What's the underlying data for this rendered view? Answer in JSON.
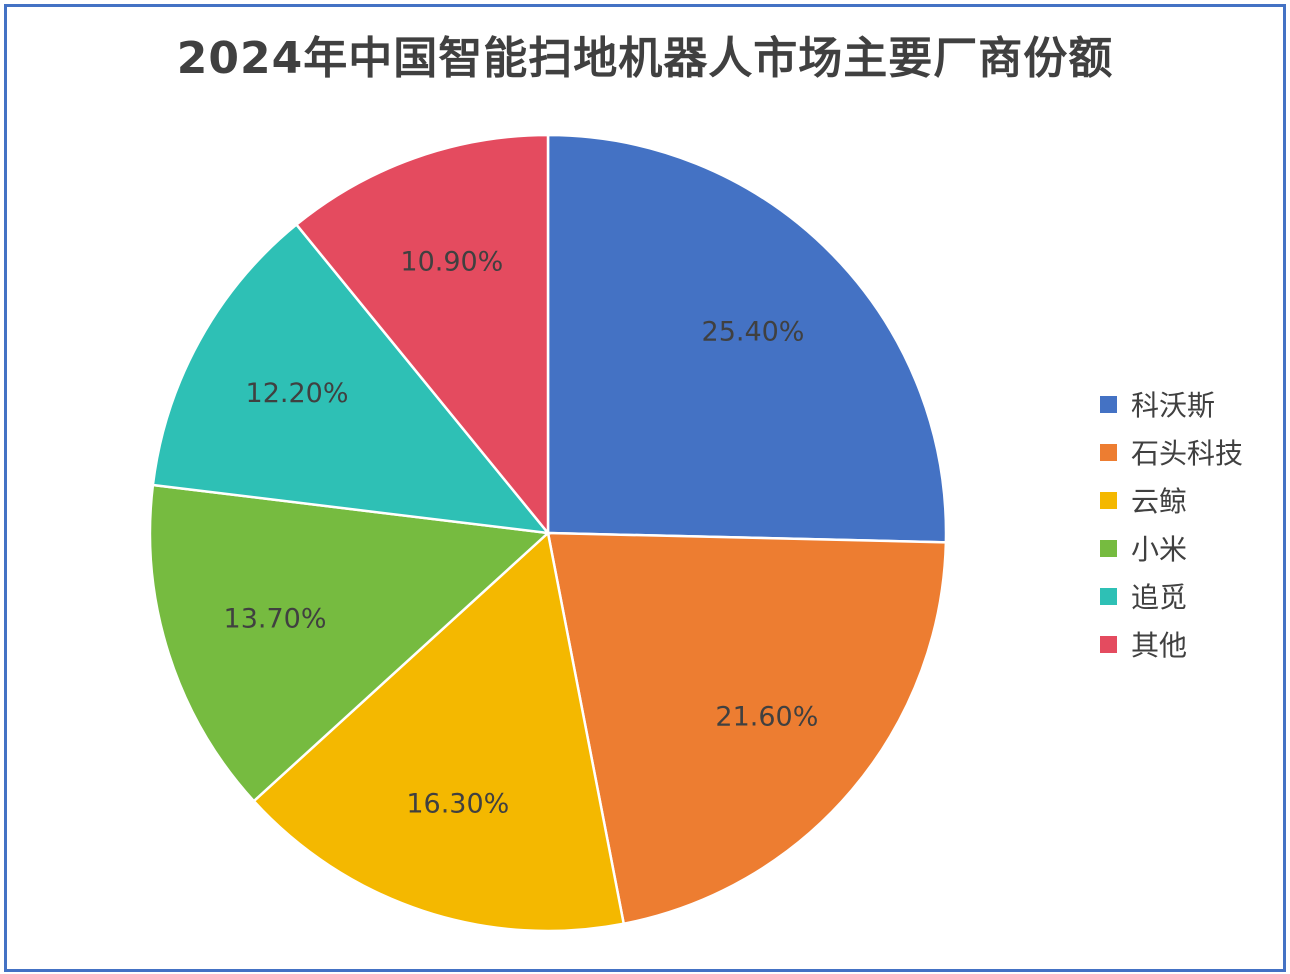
{
  "chart_data": {
    "type": "pie",
    "title": "2024年中国智能扫地机器人市场主要厂商份额",
    "legend_position": "right",
    "slices": [
      {
        "name": "科沃斯",
        "value": 25.4,
        "label": "25.40%",
        "color": "#4472c4"
      },
      {
        "name": "石头科技",
        "value": 21.6,
        "label": "21.60%",
        "color": "#ed7d31"
      },
      {
        "name": "云鲸",
        "value": 16.3,
        "label": "16.30%",
        "color": "#f4b800"
      },
      {
        "name": "小米",
        "value": 13.7,
        "label": "13.70%",
        "color": "#76bb40"
      },
      {
        "name": "追觅",
        "value": 12.2,
        "label": "12.20%",
        "color": "#2ec0b5"
      },
      {
        "name": "其他",
        "value": 10.9,
        "label": "10.90%",
        "color": "#e44b5f"
      }
    ]
  }
}
